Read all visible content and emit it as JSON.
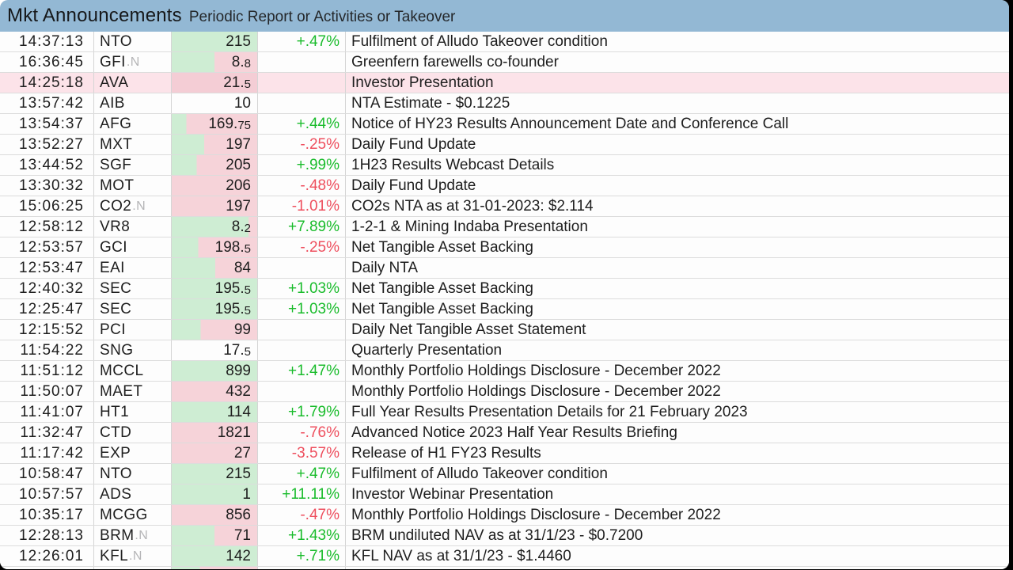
{
  "window": {
    "title": "Mkt Announcements",
    "subtitle": "Periodic Report or Activities or Takeover"
  },
  "colors": {
    "header_bg": "#93b8d4",
    "green_fill": "#ceedd3",
    "pink_fill": "#f6d3d9",
    "row_highlight_bg": "#fce3e9",
    "highlight_price_fill": "#f4cdd5",
    "up_text": "#1abc2c",
    "down_text": "#ee4f5e",
    "ticker_suffix": "#b5b5b7"
  },
  "table": {
    "columns": [
      "time",
      "ticker",
      "price",
      "change",
      "announcement"
    ],
    "rows": [
      {
        "time": "14:37:13",
        "ticker": "NTO",
        "suffix": "",
        "price": "215",
        "change": "+.47%",
        "text": "Fulfilment of Alludo Takeover condition",
        "fill": 1,
        "highlight": false
      },
      {
        "time": "16:36:45",
        "ticker": "GFI",
        "suffix": ".N",
        "price": "8.8",
        "change": "",
        "text": "Greenfern farewells co-founder",
        "fill": 0.5,
        "highlight": false
      },
      {
        "time": "14:25:18",
        "ticker": "AVA",
        "suffix": "",
        "price": "21.5",
        "change": "",
        "text": "Investor Presentation",
        "fill": 0,
        "highlight": true
      },
      {
        "time": "13:57:42",
        "ticker": "AIB",
        "suffix": "",
        "price": "10",
        "change": "",
        "text": "NTA Estimate - $0.1225",
        "fill": null,
        "highlight": false
      },
      {
        "time": "13:54:37",
        "ticker": "AFG",
        "suffix": "",
        "price": "169.75",
        "change": "+.44%",
        "text": "Notice of HY23 Results Announcement Date and Conference Call",
        "fill": 0.17,
        "highlight": false
      },
      {
        "time": "13:52:27",
        "ticker": "MXT",
        "suffix": "",
        "price": "197",
        "change": "-.25%",
        "text": "Daily Fund Update",
        "fill": 0.38,
        "highlight": false
      },
      {
        "time": "13:44:52",
        "ticker": "SGF",
        "suffix": "",
        "price": "205",
        "change": "+.99%",
        "text": "1H23 Results Webcast Details",
        "fill": 0.29,
        "highlight": false
      },
      {
        "time": "13:30:32",
        "ticker": "MOT",
        "suffix": "",
        "price": "206",
        "change": "-.48%",
        "text": "Daily Fund Update",
        "fill": 0,
        "highlight": false
      },
      {
        "time": "15:06:25",
        "ticker": "CO2",
        "suffix": ".N",
        "price": "197",
        "change": "-1.01%",
        "text": "CO2s NTA as at 31-01-2023: $2.114",
        "fill": 0,
        "highlight": false
      },
      {
        "time": "12:58:12",
        "ticker": "VR8",
        "suffix": "",
        "price": "8.2",
        "change": "+7.89%",
        "text": "1-2-1 & Mining Indaba Presentation",
        "fill": 0.9,
        "highlight": false
      },
      {
        "time": "12:53:57",
        "ticker": "GCI",
        "suffix": "",
        "price": "198.5",
        "change": "-.25%",
        "text": "Net Tangible Asset Backing",
        "fill": 0.31,
        "highlight": false
      },
      {
        "time": "12:53:47",
        "ticker": "EAI",
        "suffix": "",
        "price": "84",
        "change": "",
        "text": "Daily NTA",
        "fill": 0.51,
        "highlight": false
      },
      {
        "time": "12:40:32",
        "ticker": "SEC",
        "suffix": "",
        "price": "195.5",
        "change": "+1.03%",
        "text": "Net Tangible Asset Backing",
        "fill": 1,
        "highlight": false
      },
      {
        "time": "12:25:47",
        "ticker": "SEC",
        "suffix": "",
        "price": "195.5",
        "change": "+1.03%",
        "text": "Net Tangible Asset Backing",
        "fill": 1,
        "highlight": false
      },
      {
        "time": "12:15:52",
        "ticker": "PCI",
        "suffix": "",
        "price": "99",
        "change": "",
        "text": "Daily Net Tangible Asset Statement",
        "fill": 0.34,
        "highlight": false
      },
      {
        "time": "11:54:22",
        "ticker": "SNG",
        "suffix": "",
        "price": "17.5",
        "change": "",
        "text": "Quarterly Presentation",
        "fill": null,
        "highlight": false
      },
      {
        "time": "11:51:12",
        "ticker": "MCCL",
        "suffix": "",
        "price": "899",
        "change": "+1.47%",
        "text": "Monthly Portfolio Holdings Disclosure - December 2022",
        "fill": 1,
        "highlight": false
      },
      {
        "time": "11:50:07",
        "ticker": "MAET",
        "suffix": "",
        "price": "432",
        "change": "",
        "text": "Monthly Portfolio Holdings Disclosure - December 2022",
        "fill": 0,
        "highlight": false
      },
      {
        "time": "11:41:07",
        "ticker": "HT1",
        "suffix": "",
        "price": "114",
        "change": "+1.79%",
        "text": "Full Year Results Presentation Details for 21 February 2023",
        "fill": 1,
        "highlight": false
      },
      {
        "time": "11:32:47",
        "ticker": "CTD",
        "suffix": "",
        "price": "1821",
        "change": "-.76%",
        "text": "Advanced Notice 2023 Half Year Results Briefing",
        "fill": 0,
        "highlight": false
      },
      {
        "time": "11:17:42",
        "ticker": "EXP",
        "suffix": "",
        "price": "27",
        "change": "-3.57%",
        "text": "Release of H1 FY23 Results",
        "fill": 0,
        "highlight": false
      },
      {
        "time": "10:58:47",
        "ticker": "NTO",
        "suffix": "",
        "price": "215",
        "change": "+.47%",
        "text": "Fulfilment of Alludo Takeover condition",
        "fill": 1,
        "highlight": false
      },
      {
        "time": "10:57:57",
        "ticker": "ADS",
        "suffix": "",
        "price": "1",
        "change": "+11.11%",
        "text": "Investor Webinar Presentation",
        "fill": 1,
        "highlight": false
      },
      {
        "time": "10:35:17",
        "ticker": "MCGG",
        "suffix": "",
        "price": "856",
        "change": "-.47%",
        "text": "Monthly Portfolio Holdings Disclosure - December 2022",
        "fill": 0,
        "highlight": false
      },
      {
        "time": "12:28:13",
        "ticker": "BRM",
        "suffix": ".N",
        "price": "71",
        "change": "+1.43%",
        "text": "BRM undiluted NAV as at 31/1/23 - $0.7200",
        "fill": 0.5,
        "highlight": false
      },
      {
        "time": "12:26:01",
        "ticker": "KFL",
        "suffix": ".N",
        "price": "142",
        "change": "+.71%",
        "text": "KFL NAV as at 31/1/23 - $1.4460",
        "fill": 1,
        "highlight": false
      },
      {
        "time": "",
        "ticker": "",
        "suffix": "",
        "price": "",
        "change": "",
        "text": "",
        "fill": 0.33,
        "highlight": false
      }
    ]
  }
}
